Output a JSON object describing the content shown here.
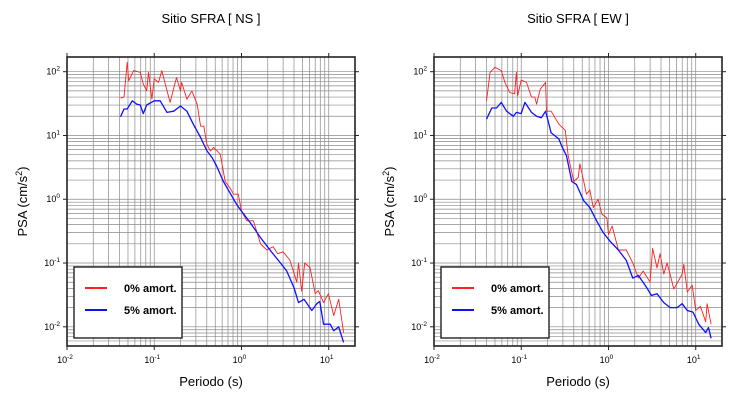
{
  "chart_data": [
    {
      "type": "line",
      "title": "Sitio SFRA [ NS ]",
      "xlabel": "Periodo (s)",
      "ylabel": {
        "text": "PSA (cm/s",
        "sup": "2",
        "close": ")"
      },
      "xscale": "log",
      "yscale": "log",
      "xlim": [
        0.01,
        20
      ],
      "ylim": [
        0.005,
        170
      ],
      "grid": true,
      "legend_position": "bottom-left",
      "x_ticks": [
        {
          "v": 0.01,
          "base": "10",
          "exp": "-2"
        },
        {
          "v": 0.1,
          "base": "10",
          "exp": "-1"
        },
        {
          "v": 1,
          "base": "10",
          "exp": "0"
        },
        {
          "v": 10,
          "base": "10",
          "exp": "1"
        }
      ],
      "y_ticks": [
        {
          "v": 0.01,
          "base": "10",
          "exp": "-2"
        },
        {
          "v": 0.1,
          "base": "10",
          "exp": "-1"
        },
        {
          "v": 1,
          "base": "10",
          "exp": "0"
        },
        {
          "v": 10,
          "base": "10",
          "exp": "1"
        },
        {
          "v": 100,
          "base": "10",
          "exp": "2"
        }
      ],
      "series": [
        {
          "name": "0% amort.",
          "color": "#ff2020",
          "x": [
            0.041,
            0.045,
            0.049,
            0.051,
            0.058,
            0.069,
            0.075,
            0.082,
            0.086,
            0.094,
            0.1,
            0.112,
            0.122,
            0.134,
            0.152,
            0.18,
            0.2,
            0.206,
            0.237,
            0.27,
            0.31,
            0.34,
            0.37,
            0.4,
            0.44,
            0.48,
            0.57,
            0.65,
            0.74,
            0.81,
            0.92,
            1.0,
            1.15,
            1.37,
            1.65,
            1.95,
            2.3,
            2.6,
            3.0,
            3.6,
            4.3,
            4.5,
            4.9,
            5.3,
            6.1,
            7.0,
            7.6,
            8.7,
            9.9,
            11.4,
            13,
            14.8
          ],
          "y": [
            38.6,
            40,
            140,
            72,
            104,
            98,
            64,
            50,
            98,
            37,
            77,
            68,
            104,
            64,
            33,
            81,
            50,
            68,
            37,
            50,
            31,
            14,
            14,
            7.3,
            5.7,
            6.5,
            5.1,
            1.9,
            1.5,
            1.2,
            1.2,
            0.65,
            0.46,
            0.46,
            0.2,
            0.16,
            0.18,
            0.14,
            0.15,
            0.11,
            0.05,
            0.1,
            0.036,
            0.1,
            0.085,
            0.033,
            0.037,
            0.024,
            0.033,
            0.015,
            0.027,
            0.0081
          ]
        },
        {
          "name": "5% amort.",
          "color": "#1010ff",
          "x": [
            0.041,
            0.045,
            0.049,
            0.056,
            0.063,
            0.069,
            0.075,
            0.082,
            0.1,
            0.117,
            0.14,
            0.167,
            0.2,
            0.237,
            0.28,
            0.34,
            0.4,
            0.46,
            0.52,
            0.62,
            0.74,
            0.88,
            1.0,
            1.26,
            1.65,
            2.2,
            2.8,
            3.3,
            4.0,
            4.5,
            5.2,
            6.4,
            7.3,
            7.9,
            8.7,
            10.4,
            11.4,
            13,
            14.8
          ],
          "y": [
            19.6,
            26,
            26,
            35,
            31,
            30,
            22,
            30,
            35,
            35,
            23,
            24,
            29,
            24,
            15,
            9.3,
            5.8,
            4.5,
            3.3,
            1.9,
            1.25,
            0.83,
            0.65,
            0.43,
            0.25,
            0.15,
            0.1,
            0.075,
            0.041,
            0.024,
            0.027,
            0.018,
            0.023,
            0.025,
            0.011,
            0.011,
            0.0087,
            0.01,
            0.0057
          ]
        }
      ]
    },
    {
      "type": "line",
      "title": "Sitio SFRA [ EW ]",
      "xlabel": "Periodo (s)",
      "ylabel": {
        "text": "PSA (cm/s",
        "sup": "2",
        "close": ")"
      },
      "xscale": "log",
      "yscale": "log",
      "xlim": [
        0.01,
        20
      ],
      "ylim": [
        0.005,
        170
      ],
      "grid": true,
      "legend_position": "bottom-left",
      "x_ticks": [
        {
          "v": 0.01,
          "base": "10",
          "exp": "-2"
        },
        {
          "v": 0.1,
          "base": "10",
          "exp": "-1"
        },
        {
          "v": 1,
          "base": "10",
          "exp": "0"
        },
        {
          "v": 10,
          "base": "10",
          "exp": "1"
        }
      ],
      "y_ticks": [
        {
          "v": 0.01,
          "base": "10",
          "exp": "-2"
        },
        {
          "v": 0.1,
          "base": "10",
          "exp": "-1"
        },
        {
          "v": 1,
          "base": "10",
          "exp": "0"
        },
        {
          "v": 10,
          "base": "10",
          "exp": "1"
        },
        {
          "v": 100,
          "base": "10",
          "exp": "2"
        }
      ],
      "series": [
        {
          "name": "0% amort.",
          "color": "#ff2020",
          "x": [
            0.04,
            0.044,
            0.05,
            0.059,
            0.065,
            0.074,
            0.084,
            0.088,
            0.091,
            0.1,
            0.115,
            0.131,
            0.143,
            0.15,
            0.165,
            0.19,
            0.195,
            0.22,
            0.27,
            0.32,
            0.345,
            0.4,
            0.45,
            0.47,
            0.56,
            0.61,
            0.67,
            0.76,
            0.84,
            0.96,
            1.0,
            1.1,
            1.3,
            1.6,
            1.9,
            2.2,
            2.5,
            3.0,
            3.2,
            3.6,
            3.9,
            4.3,
            4.7,
            5.3,
            5.6,
            7.0,
            7.3,
            8.0,
            9.1,
            10,
            11.3,
            13,
            13.5,
            15
          ],
          "y": [
            35,
            98,
            117,
            104,
            68,
            47,
            45,
            98,
            42,
            74,
            68,
            40,
            40,
            31,
            53,
            68,
            24,
            24,
            15,
            12,
            4.8,
            1.9,
            2.2,
            3.6,
            1.2,
            1.4,
            0.74,
            1.0,
            0.58,
            0.51,
            0.28,
            0.38,
            0.16,
            0.16,
            0.1,
            0.058,
            0.075,
            0.05,
            0.17,
            0.084,
            0.14,
            0.067,
            0.1,
            0.053,
            0.039,
            0.067,
            0.096,
            0.035,
            0.045,
            0.018,
            0.021,
            0.012,
            0.023,
            0.011
          ]
        },
        {
          "name": "5% amort.",
          "color": "#1010ff",
          "x": [
            0.04,
            0.046,
            0.052,
            0.059,
            0.068,
            0.081,
            0.088,
            0.1,
            0.11,
            0.131,
            0.15,
            0.17,
            0.19,
            0.22,
            0.27,
            0.29,
            0.33,
            0.38,
            0.43,
            0.52,
            0.61,
            0.73,
            0.87,
            1.04,
            1.3,
            1.6,
            1.9,
            2.2,
            2.75,
            3.1,
            3.6,
            4.3,
            5.1,
            6.1,
            7.0,
            8.0,
            9.3,
            10.8,
            13,
            14,
            15
          ],
          "y": [
            18,
            27,
            27,
            33,
            24,
            20,
            23,
            22,
            33,
            23,
            20,
            19,
            24,
            11,
            8.8,
            6.9,
            4.8,
            1.9,
            1.7,
            0.95,
            0.74,
            0.46,
            0.3,
            0.22,
            0.16,
            0.11,
            0.058,
            0.064,
            0.041,
            0.031,
            0.033,
            0.024,
            0.02,
            0.02,
            0.023,
            0.018,
            0.017,
            0.011,
            0.0081,
            0.0097,
            0.0066
          ]
        }
      ]
    }
  ]
}
